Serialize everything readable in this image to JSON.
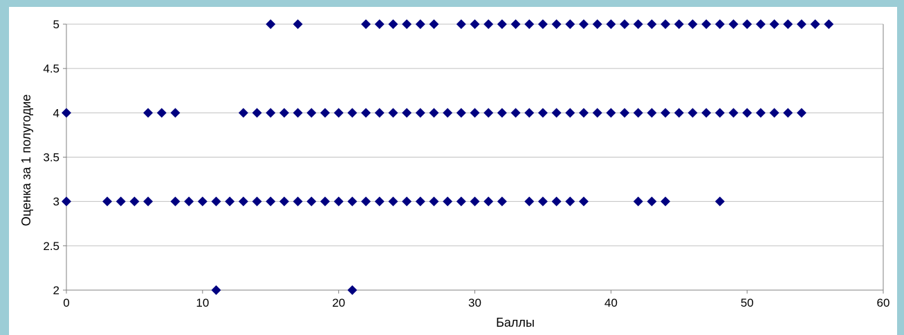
{
  "chart_data": {
    "type": "scatter",
    "title": "",
    "xlabel": "Баллы",
    "ylabel": "Оценка за 1 полугодие",
    "xlim": [
      0,
      60
    ],
    "ylim": [
      2,
      5
    ],
    "xticks": [
      0,
      10,
      20,
      30,
      40,
      50,
      60
    ],
    "xtick_labels": [
      "0",
      "10",
      "20",
      "30",
      "40",
      "50",
      "60"
    ],
    "yticks": [
      2,
      2.5,
      3,
      3.5,
      4,
      4.5,
      5
    ],
    "ytick_labels": [
      "2",
      "2.5",
      "3",
      "3.5",
      "4",
      "4.5",
      "5"
    ],
    "grid": "horizontal",
    "legend": "none",
    "marker": "diamond",
    "marker_color": "#000080",
    "points": [
      [
        0,
        4
      ],
      [
        0,
        3
      ],
      [
        3,
        3
      ],
      [
        4,
        3
      ],
      [
        5,
        3
      ],
      [
        6,
        3
      ],
      [
        8,
        3
      ],
      [
        9,
        3
      ],
      [
        10,
        3
      ],
      [
        11,
        3
      ],
      [
        12,
        3
      ],
      [
        13,
        3
      ],
      [
        14,
        3
      ],
      [
        15,
        3
      ],
      [
        16,
        3
      ],
      [
        17,
        3
      ],
      [
        18,
        3
      ],
      [
        19,
        3
      ],
      [
        20,
        3
      ],
      [
        21,
        3
      ],
      [
        22,
        3
      ],
      [
        23,
        3
      ],
      [
        24,
        3
      ],
      [
        25,
        3
      ],
      [
        26,
        3
      ],
      [
        27,
        3
      ],
      [
        28,
        3
      ],
      [
        29,
        3
      ],
      [
        30,
        3
      ],
      [
        31,
        3
      ],
      [
        32,
        3
      ],
      [
        34,
        3
      ],
      [
        35,
        3
      ],
      [
        36,
        3
      ],
      [
        37,
        3
      ],
      [
        38,
        3
      ],
      [
        42,
        3
      ],
      [
        43,
        3
      ],
      [
        44,
        3
      ],
      [
        48,
        3
      ],
      [
        6,
        4
      ],
      [
        7,
        4
      ],
      [
        8,
        4
      ],
      [
        13,
        4
      ],
      [
        14,
        4
      ],
      [
        15,
        4
      ],
      [
        16,
        4
      ],
      [
        17,
        4
      ],
      [
        18,
        4
      ],
      [
        19,
        4
      ],
      [
        20,
        4
      ],
      [
        21,
        4
      ],
      [
        22,
        4
      ],
      [
        23,
        4
      ],
      [
        24,
        4
      ],
      [
        25,
        4
      ],
      [
        26,
        4
      ],
      [
        27,
        4
      ],
      [
        28,
        4
      ],
      [
        29,
        4
      ],
      [
        30,
        4
      ],
      [
        31,
        4
      ],
      [
        32,
        4
      ],
      [
        33,
        4
      ],
      [
        34,
        4
      ],
      [
        35,
        4
      ],
      [
        36,
        4
      ],
      [
        37,
        4
      ],
      [
        38,
        4
      ],
      [
        39,
        4
      ],
      [
        40,
        4
      ],
      [
        41,
        4
      ],
      [
        42,
        4
      ],
      [
        43,
        4
      ],
      [
        44,
        4
      ],
      [
        45,
        4
      ],
      [
        46,
        4
      ],
      [
        47,
        4
      ],
      [
        48,
        4
      ],
      [
        49,
        4
      ],
      [
        50,
        4
      ],
      [
        51,
        4
      ],
      [
        52,
        4
      ],
      [
        53,
        4
      ],
      [
        54,
        4
      ],
      [
        15,
        5
      ],
      [
        17,
        5
      ],
      [
        22,
        5
      ],
      [
        23,
        5
      ],
      [
        24,
        5
      ],
      [
        25,
        5
      ],
      [
        26,
        5
      ],
      [
        27,
        5
      ],
      [
        29,
        5
      ],
      [
        30,
        5
      ],
      [
        31,
        5
      ],
      [
        32,
        5
      ],
      [
        33,
        5
      ],
      [
        34,
        5
      ],
      [
        35,
        5
      ],
      [
        36,
        5
      ],
      [
        37,
        5
      ],
      [
        38,
        5
      ],
      [
        39,
        5
      ],
      [
        40,
        5
      ],
      [
        41,
        5
      ],
      [
        42,
        5
      ],
      [
        43,
        5
      ],
      [
        44,
        5
      ],
      [
        45,
        5
      ],
      [
        46,
        5
      ],
      [
        47,
        5
      ],
      [
        48,
        5
      ],
      [
        49,
        5
      ],
      [
        50,
        5
      ],
      [
        51,
        5
      ],
      [
        52,
        5
      ],
      [
        53,
        5
      ],
      [
        54,
        5
      ],
      [
        55,
        5
      ],
      [
        56,
        5
      ],
      [
        11,
        2
      ],
      [
        21,
        2
      ]
    ]
  }
}
